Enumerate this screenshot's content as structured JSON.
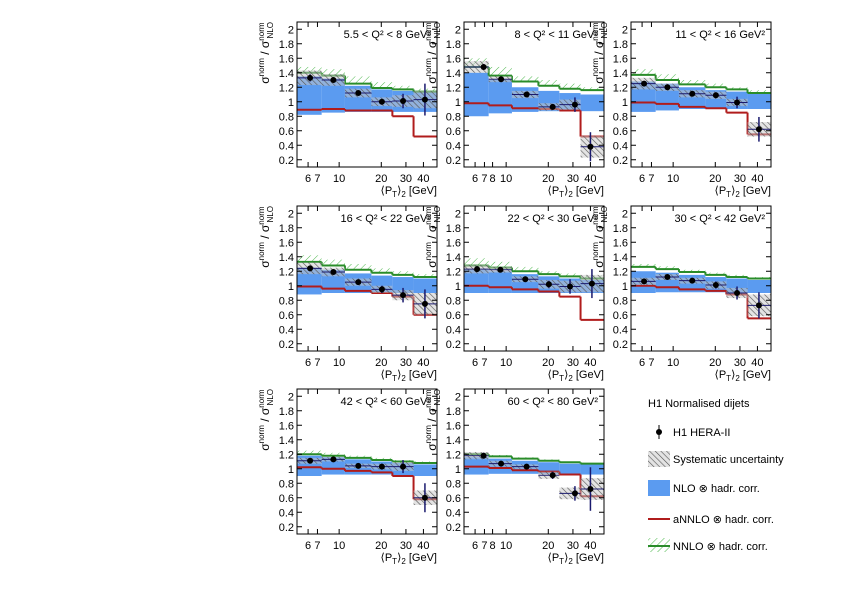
{
  "chart_data": {
    "type": "step",
    "log_x": true,
    "xlim": [
      5,
      50
    ],
    "ylim": [
      0.1,
      2.1
    ],
    "yticks": [
      0.2,
      0.4,
      0.6,
      0.8,
      1,
      1.2,
      1.4,
      1.6,
      1.8,
      2
    ],
    "xlabel": [
      "⟨P",
      "T",
      "⟩",
      "2",
      " [GeV]"
    ],
    "ylabel": [
      "σ",
      "norm",
      " / σ",
      "norm",
      "NLO"
    ],
    "legend": {
      "title": "H1 Normalised dijets",
      "entries": [
        {
          "name": "H1 HERA-II",
          "color": "#000000"
        },
        {
          "name": "Systematic uncertainty",
          "color": "#555555"
        },
        {
          "name": "NLO ⊗ hadr. corr.",
          "color": "#5b9bf0"
        },
        {
          "name": "aNNLO ⊗ hadr. corr.",
          "color": "#b01c1c"
        },
        {
          "name": "NNLO ⊗ hadr. corr.",
          "color": "#2a8c2a"
        }
      ]
    },
    "panels": [
      {
        "title": "5.5 < Q² < 8 GeV²",
        "xticks": [
          6,
          7,
          10,
          20,
          30,
          40
        ],
        "bins": [
          5,
          7.5,
          11,
          17,
          24,
          34,
          50
        ],
        "x": [
          6.2,
          9.1,
          13.7,
          20.2,
          28.6,
          41
        ],
        "values": [
          1.33,
          1.3,
          1.12,
          1.0,
          1.01,
          1.03
        ],
        "stat": [
          0.05,
          0.03,
          0.03,
          0.04,
          0.1,
          0.22
        ],
        "sys": [
          0.1,
          0.08,
          0.06,
          0.06,
          0.08,
          0.12
        ],
        "nlo_low": [
          0.82,
          0.85,
          0.86,
          0.86,
          0.86,
          0.86
        ],
        "nlo_high": [
          1.35,
          1.32,
          1.22,
          1.17,
          1.15,
          1.13
        ],
        "annlo": [
          0.89,
          0.9,
          0.88,
          0.88,
          0.8,
          0.52
        ],
        "nnlo": [
          1.4,
          1.36,
          1.25,
          1.19,
          1.17,
          1.14
        ],
        "nnlo_high": [
          1.48,
          1.45,
          1.35,
          1.27,
          1.22,
          1.18
        ]
      },
      {
        "title": "8 < Q² < 11 GeV²",
        "xticks": [
          6,
          7,
          8,
          10,
          20,
          30,
          40
        ],
        "bins": [
          5,
          7.5,
          11,
          17,
          24,
          34,
          50
        ],
        "x": [
          6.9,
          9.2,
          14,
          21.5,
          31,
          40
        ],
        "values": [
          1.48,
          1.31,
          1.1,
          0.93,
          0.96,
          0.38
        ],
        "stat": [
          0.04,
          0.03,
          0.03,
          0.04,
          0.1,
          0.2
        ],
        "sys": [
          0.08,
          0.04,
          0.05,
          0.05,
          0.07,
          0.15
        ],
        "nlo_low": [
          0.8,
          0.84,
          0.86,
          0.87,
          0.87,
          0.87
        ],
        "nlo_high": [
          1.4,
          1.3,
          1.2,
          1.15,
          1.12,
          1.1
        ],
        "annlo": [
          0.98,
          0.95,
          0.91,
          0.9,
          0.88,
          0.52
        ],
        "nnlo": [
          1.48,
          1.36,
          1.28,
          1.22,
          1.18,
          1.16
        ],
        "nnlo_high": [
          1.6,
          1.48,
          1.35,
          1.3,
          1.25,
          1.2
        ]
      },
      {
        "title": "11 < Q² < 16 GeV²",
        "xticks": [
          6,
          7,
          10,
          20,
          30,
          40
        ],
        "bins": [
          5,
          7.5,
          11,
          17,
          24,
          34,
          50
        ],
        "x": [
          6.2,
          9.1,
          13.7,
          20.2,
          28.6,
          41
        ],
        "values": [
          1.25,
          1.2,
          1.11,
          1.09,
          0.99,
          0.62
        ],
        "stat": [
          0.03,
          0.02,
          0.03,
          0.04,
          0.08,
          0.17
        ],
        "sys": [
          0.08,
          0.05,
          0.05,
          0.05,
          0.05,
          0.1
        ],
        "nlo_low": [
          0.86,
          0.88,
          0.9,
          0.9,
          0.9,
          0.9
        ],
        "nlo_high": [
          1.28,
          1.25,
          1.2,
          1.16,
          1.14,
          1.12
        ],
        "annlo": [
          0.99,
          0.97,
          0.93,
          0.91,
          0.85,
          0.55
        ],
        "nnlo": [
          1.37,
          1.3,
          1.24,
          1.2,
          1.17,
          1.12
        ],
        "nnlo_high": [
          1.45,
          1.38,
          1.3,
          1.25,
          1.2,
          1.16
        ]
      },
      {
        "title": "16 < Q² < 22 GeV²",
        "xticks": [
          6,
          7,
          10,
          20,
          30,
          40
        ],
        "bins": [
          5,
          7.5,
          11,
          17,
          24,
          34,
          50
        ],
        "x": [
          6.2,
          9.1,
          13.7,
          20.2,
          28.6,
          41
        ],
        "values": [
          1.24,
          1.19,
          1.05,
          0.95,
          0.87,
          0.75
        ],
        "stat": [
          0.04,
          0.03,
          0.03,
          0.05,
          0.1,
          0.2
        ],
        "sys": [
          0.08,
          0.06,
          0.05,
          0.05,
          0.07,
          0.15
        ],
        "nlo_low": [
          0.88,
          0.9,
          0.9,
          0.9,
          0.9,
          0.9
        ],
        "nlo_high": [
          1.25,
          1.22,
          1.17,
          1.14,
          1.12,
          1.1
        ],
        "annlo": [
          0.99,
          0.96,
          0.93,
          0.9,
          0.85,
          0.6
        ],
        "nnlo": [
          1.33,
          1.28,
          1.22,
          1.18,
          1.15,
          1.12
        ],
        "nnlo_high": [
          1.42,
          1.36,
          1.3,
          1.24,
          1.2,
          1.16
        ]
      },
      {
        "title": "22 < Q² < 30 GeV²",
        "xticks": [
          6,
          7,
          10,
          20,
          30,
          40
        ],
        "bins": [
          5,
          7.5,
          11,
          17,
          24,
          34,
          50
        ],
        "x": [
          6.2,
          9.1,
          13.7,
          20.2,
          28.6,
          41
        ],
        "values": [
          1.23,
          1.22,
          1.09,
          1.02,
          0.99,
          1.03
        ],
        "stat": [
          0.04,
          0.03,
          0.03,
          0.05,
          0.1,
          0.2
        ],
        "sys": [
          0.06,
          0.04,
          0.04,
          0.06,
          0.08,
          0.12
        ],
        "nlo_low": [
          0.9,
          0.9,
          0.9,
          0.9,
          0.9,
          0.9
        ],
        "nlo_high": [
          1.22,
          1.2,
          1.16,
          1.13,
          1.1,
          1.08
        ],
        "annlo": [
          1.0,
          0.98,
          0.95,
          0.92,
          0.85,
          0.53
        ],
        "nnlo": [
          1.28,
          1.25,
          1.2,
          1.16,
          1.13,
          1.1
        ],
        "nnlo_high": [
          1.38,
          1.33,
          1.26,
          1.2,
          1.17,
          1.14
        ]
      },
      {
        "title": "30 < Q² < 42 GeV²",
        "xticks": [
          6,
          7,
          10,
          20,
          30,
          40
        ],
        "bins": [
          5,
          7.5,
          11,
          17,
          24,
          34,
          50
        ],
        "x": [
          6.2,
          9.1,
          13.7,
          20.2,
          28.6,
          41
        ],
        "values": [
          1.06,
          1.12,
          1.07,
          1.01,
          0.9,
          0.73
        ],
        "stat": [
          0.03,
          0.03,
          0.03,
          0.05,
          0.09,
          0.18
        ],
        "sys": [
          0.05,
          0.04,
          0.04,
          0.05,
          0.07,
          0.15
        ],
        "nlo_low": [
          0.9,
          0.91,
          0.91,
          0.91,
          0.9,
          0.9
        ],
        "nlo_high": [
          1.2,
          1.18,
          1.15,
          1.12,
          1.1,
          1.08
        ],
        "annlo": [
          1.0,
          0.98,
          0.95,
          0.93,
          0.88,
          0.55
        ],
        "nnlo": [
          1.26,
          1.23,
          1.19,
          1.15,
          1.12,
          1.1
        ],
        "nnlo_high": [
          1.3,
          1.27,
          1.22,
          1.18,
          1.15,
          1.12
        ]
      },
      {
        "title": "42 < Q² < 60 GeV²",
        "xticks": [
          6,
          7,
          10,
          20,
          30,
          40
        ],
        "bins": [
          5,
          7.5,
          11,
          17,
          24,
          34,
          50
        ],
        "x": [
          6.2,
          9.1,
          13.7,
          20.2,
          28.6,
          41
        ],
        "values": [
          1.11,
          1.13,
          1.04,
          1.03,
          1.03,
          0.6
        ],
        "stat": [
          0.03,
          0.03,
          0.03,
          0.04,
          0.09,
          0.2
        ],
        "sys": [
          0.04,
          0.03,
          0.03,
          0.04,
          0.06,
          0.1
        ],
        "nlo_low": [
          0.9,
          0.92,
          0.92,
          0.92,
          0.91,
          0.9
        ],
        "nlo_high": [
          1.18,
          1.16,
          1.13,
          1.1,
          1.08,
          1.06
        ],
        "annlo": [
          1.02,
          1.0,
          0.97,
          0.95,
          0.9,
          0.58
        ],
        "nnlo": [
          1.2,
          1.18,
          1.15,
          1.12,
          1.1,
          1.08
        ],
        "nnlo_high": [
          1.25,
          1.22,
          1.18,
          1.15,
          1.12,
          1.1
        ]
      },
      {
        "title": "60 < Q² < 80 GeV²",
        "xticks": [
          6,
          7,
          8,
          10,
          20,
          30,
          40
        ],
        "bins": [
          5,
          7.5,
          11,
          17,
          24,
          34,
          50
        ],
        "x": [
          6.9,
          9.2,
          14,
          21.5,
          31,
          40
        ],
        "values": [
          1.18,
          1.07,
          1.03,
          0.91,
          0.66,
          0.72
        ],
        "stat": [
          0.04,
          0.03,
          0.03,
          0.05,
          0.1,
          0.3
        ],
        "sys": [
          0.05,
          0.04,
          0.03,
          0.05,
          0.08,
          0.15
        ],
        "nlo_low": [
          0.92,
          0.93,
          0.93,
          0.93,
          0.92,
          0.92
        ],
        "nlo_high": [
          1.16,
          1.14,
          1.11,
          1.09,
          1.07,
          1.06
        ],
        "annlo": [
          1.03,
          1.01,
          0.98,
          0.96,
          0.92,
          0.62
        ],
        "nnlo": [
          1.2,
          1.17,
          1.14,
          1.11,
          1.09,
          1.07
        ],
        "nnlo_high": [
          1.22,
          1.19,
          1.16,
          1.13,
          1.1,
          1.08
        ]
      }
    ]
  }
}
